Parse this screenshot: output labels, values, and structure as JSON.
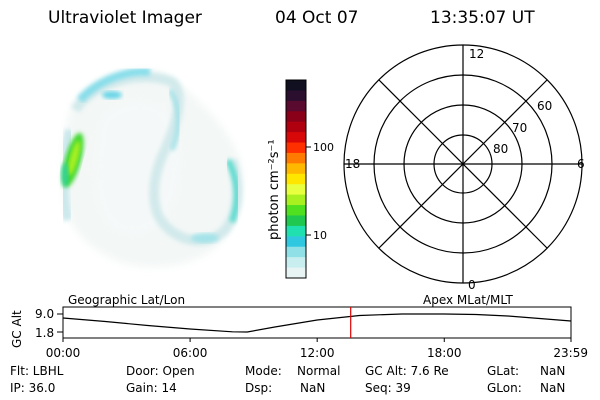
{
  "header": {
    "title": "Ultraviolet Imager",
    "date": "04 Oct 07",
    "time": "13:35:07 UT"
  },
  "colorbar": {
    "label": "photon cm⁻²s⁻¹",
    "ticks": [
      "100",
      "10"
    ],
    "colors": [
      "#101020",
      "#2a0f2e",
      "#5a0a2e",
      "#8a0018",
      "#b00010",
      "#d80808",
      "#ff3000",
      "#ff7a00",
      "#ffb800",
      "#ffe600",
      "#e8ff40",
      "#a8f020",
      "#50e020",
      "#20c850",
      "#20e0b0",
      "#30c8e0",
      "#90e0e8",
      "#c8eef0",
      "#e8f4f4"
    ]
  },
  "polar": {
    "mlt_labels": {
      "top": "12",
      "right": "6",
      "bottom": "0",
      "left": "18"
    },
    "lat_labels": [
      "60",
      "70",
      "80"
    ]
  },
  "timeline": {
    "y_axis_label": "GC Alt",
    "y_max": "9.0",
    "y_min": "1.8",
    "left_label": "Geographic Lat/Lon",
    "right_label": "Apex MLat/MLT",
    "x_ticks": [
      "00:00",
      "06:00",
      "12:00",
      "18:00",
      "23:59"
    ],
    "current_time_hours": 13.585,
    "altitude_curve": [
      [
        0,
        7.4
      ],
      [
        2,
        6.0
      ],
      [
        4,
        4.4
      ],
      [
        6,
        3.0
      ],
      [
        8,
        1.9
      ],
      [
        8.7,
        1.8
      ],
      [
        10,
        3.8
      ],
      [
        12,
        6.6
      ],
      [
        14,
        8.4
      ],
      [
        16,
        9.0
      ],
      [
        18,
        9.0
      ],
      [
        19.5,
        8.8
      ],
      [
        21,
        8.2
      ],
      [
        22.5,
        7.2
      ],
      [
        23.98,
        6.2
      ]
    ]
  },
  "info": {
    "flt": "Flt: LBHL",
    "ip": "IP: 36.0",
    "door": "Door: Open",
    "gain": "Gain: 14",
    "mode_label": "Mode:",
    "mode_value": "Normal",
    "dsp_label": "Dsp:",
    "dsp_value": "NaN",
    "gcalt": "GC Alt: 7.6 Re",
    "seq": "Seq: 39",
    "glat_label": "GLat:",
    "glat_value": "NaN",
    "glon_label": "GLon:",
    "glon_value": "NaN"
  },
  "accent": {
    "marker": "#e00000"
  }
}
